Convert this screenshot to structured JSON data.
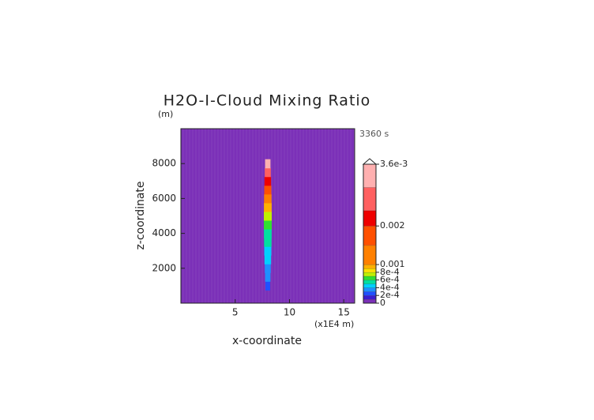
{
  "chart_data": {
    "type": "contour",
    "title": "H2O-I-Cloud Mixing Ratio",
    "y_unit": "(m)",
    "time_label": "3360 s",
    "x_unit": "(x1E4 m)",
    "xlabel": "x-coordinate",
    "ylabel": "z-coordinate",
    "xlim": [
      0,
      16
    ],
    "ylim": [
      0,
      10000
    ],
    "xticks": [
      5,
      10,
      15
    ],
    "yticks": [
      2000,
      4000,
      6000,
      8000
    ],
    "plume": {
      "x": 8,
      "z": [
        1000,
        1500,
        2000,
        2500,
        3000,
        3500,
        4000,
        4500,
        5000,
        5500,
        6000,
        6500,
        7000,
        7500,
        8000
      ],
      "values": [
        0.0002,
        0.0003,
        0.0003,
        0.0004,
        0.0004,
        0.0005,
        0.0005,
        0.0006,
        0.0007,
        0.0009,
        0.0012,
        0.0016,
        0.002,
        0.0025,
        0.003
      ]
    },
    "colorbar": {
      "lim": [
        0,
        0.0036
      ],
      "levels": [
        0,
        0.0001,
        0.0002,
        0.0003,
        0.0004,
        0.0005,
        0.0006,
        0.0007,
        0.0008,
        0.0009,
        0.001,
        0.0015,
        0.002,
        0.0024,
        0.003,
        0.0036
      ],
      "colors": [
        "#7b30b8",
        "#3a1ed0",
        "#2050ff",
        "#1e90ff",
        "#00d0ff",
        "#00e0a0",
        "#30e030",
        "#c0f000",
        "#ffe000",
        "#ffb000",
        "#ff8000",
        "#ff5000",
        "#ee0000",
        "#ff6060",
        "#ffb0b0"
      ],
      "ticks": [
        {
          "value": 0.0036,
          "label": "3.6e-3"
        },
        0.002,
        0.001,
        {
          "value": 0.0008,
          "label": "8e-4"
        },
        {
          "value": 0.0006,
          "label": "6e-4"
        },
        {
          "value": 0.0004,
          "label": "4e-4"
        },
        {
          "value": 0.0002,
          "label": "2e-4"
        },
        0
      ]
    }
  }
}
